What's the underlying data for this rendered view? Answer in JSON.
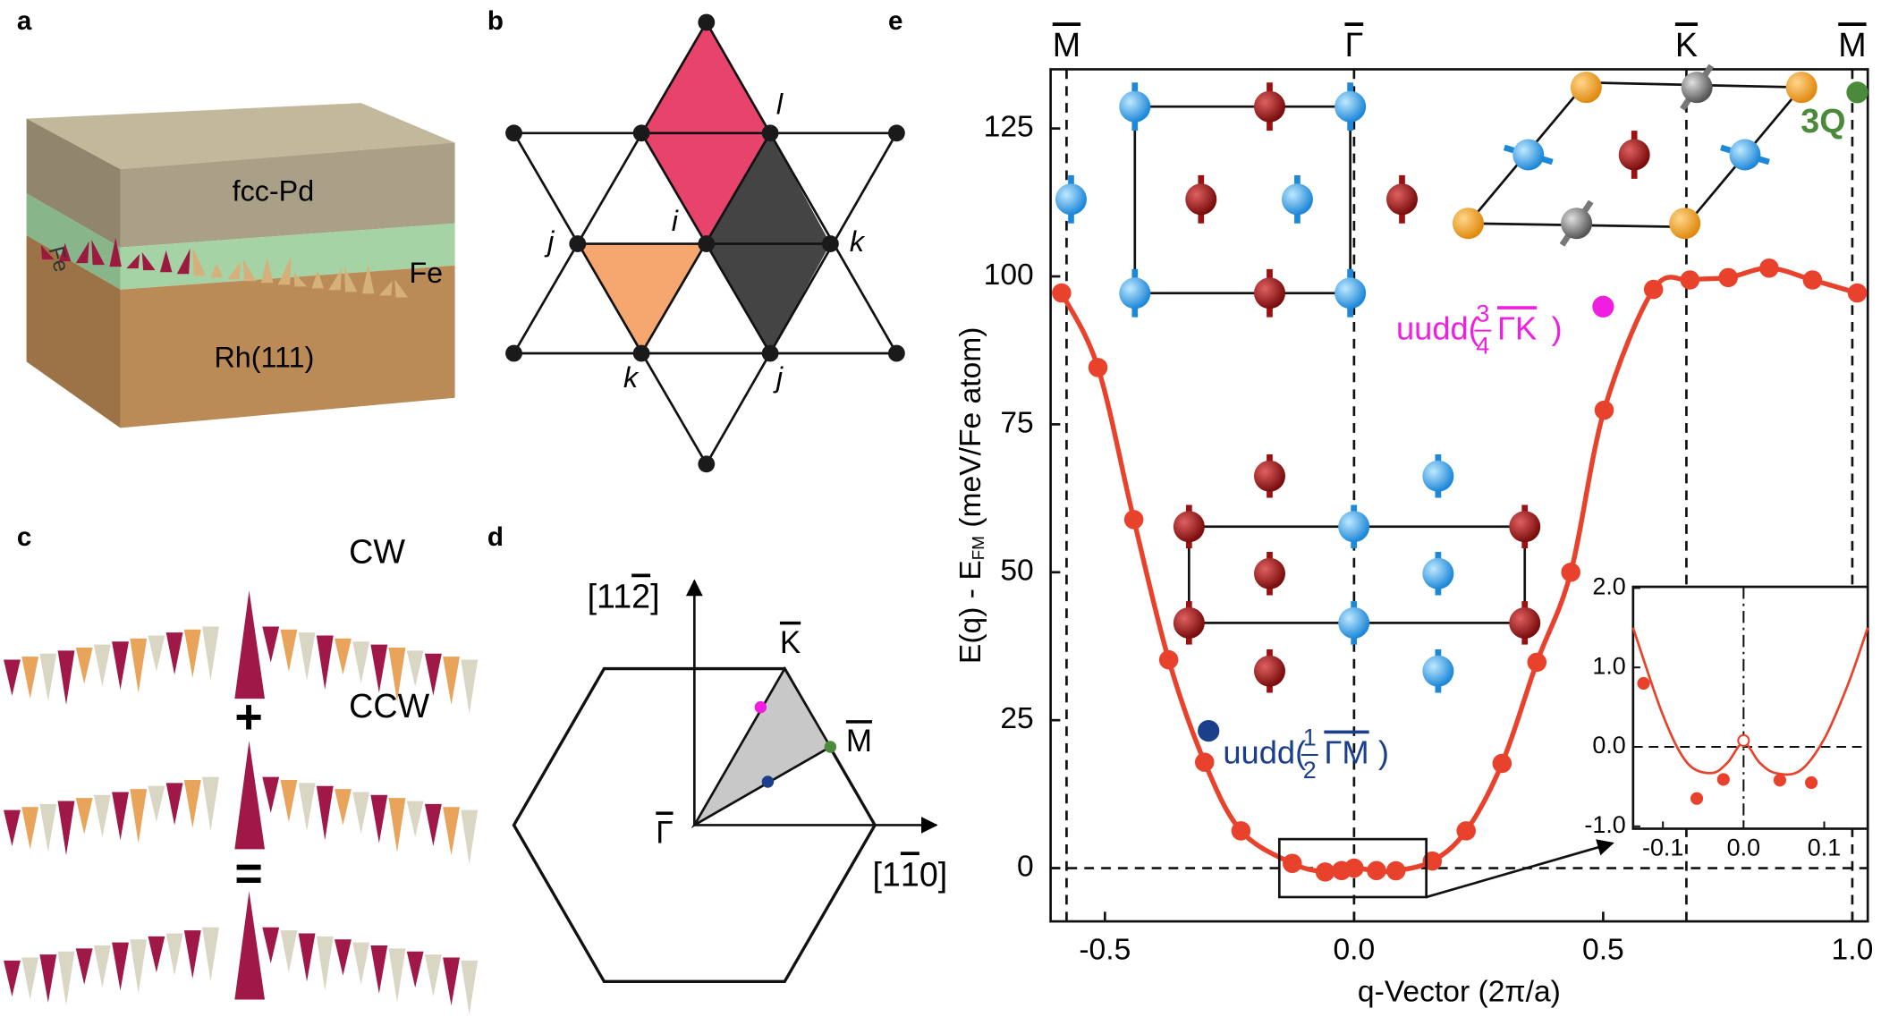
{
  "panel_labels": [
    "a",
    "b",
    "c",
    "d",
    "e"
  ],
  "panel_a": {
    "labels": [
      "fcc-Pd",
      "Fe",
      "Fe",
      "Rh(111)"
    ]
  },
  "panel_b": {
    "labels": [
      "l",
      "i",
      "j",
      "k",
      "k",
      "j"
    ]
  },
  "panel_c": {
    "labels": [
      "CW",
      "+",
      "CCW",
      "="
    ]
  },
  "panel_d": {
    "axis_y": {
      "pre": "[11",
      "bar": "2",
      "post": "]"
    },
    "axis_x": {
      "pre": "[1",
      "bar": "1",
      "post": "0]"
    },
    "points": [
      "K",
      "M",
      "Γ"
    ]
  },
  "chart_data": {
    "type": "line",
    "x_label": "q-Vector (2π/a)",
    "y_label": {
      "main": "E(q) - E",
      "sub": "FM",
      "unit": " (meV/Fe atom)"
    },
    "xlim": [
      -0.609,
      1.031
    ],
    "ylim": [
      -9,
      135
    ],
    "xticks": [
      -0.5,
      {
        "value": 0,
        "label": "0.0"
      },
      0.5,
      {
        "value": 1,
        "label": "1.0"
      }
    ],
    "yticks": [
      0,
      25,
      50,
      75,
      100,
      125
    ],
    "high_symmetry": [
      {
        "label": "M",
        "x": -0.577
      },
      {
        "label": "Γ",
        "x": 0
      },
      {
        "label": "K",
        "x": 0.667
      },
      {
        "label": "M",
        "x": 1.0
      }
    ],
    "series": [
      {
        "color": "#e8412c",
        "x": [
          -0.587,
          -0.514,
          -0.442,
          -0.372,
          -0.3,
          -0.227,
          -0.124,
          -0.058,
          -0.025,
          0,
          0.045,
          0.084,
          0.157,
          0.225,
          0.297,
          0.367,
          0.435,
          0.502,
          0.601,
          0.674,
          0.751,
          0.833,
          0.92,
          1.01
        ],
        "values": [
          97.2,
          84.6,
          58.9,
          35.2,
          17.9,
          6.3,
          0.8,
          -0.65,
          -0.41,
          0,
          -0.42,
          -0.45,
          1.2,
          6.3,
          17.7,
          34.8,
          50,
          77.4,
          97.8,
          99.4,
          99.8,
          101.4,
          99.4,
          97.2
        ]
      }
    ],
    "annotations": [
      {
        "prefix": "uudd(",
        "numerator": "3",
        "denominator": "4",
        "path": "ΓK",
        "suffix": ")",
        "x": 0.5,
        "y": 94.9,
        "color": "#f01ee0"
      },
      {
        "prefix": "uudd(",
        "numerator": "1",
        "denominator": "2",
        "path": "ΓM",
        "suffix": ")",
        "x": -0.292,
        "y": 23.2,
        "color": "#1c3f8c"
      },
      {
        "label": "3Q",
        "x": 1.01,
        "y": 131.1,
        "color": "#4a8a3a"
      }
    ],
    "zoom_box": {
      "x": [
        -0.15,
        0.145
      ],
      "y": [
        -4.9,
        4.9
      ]
    },
    "inset": {
      "xlim": [
        -0.137,
        0.154
      ],
      "ylim": [
        -1.03,
        2.015
      ],
      "xticks": [
        -0.1,
        {
          "value": 0,
          "label": "0.0"
        },
        0.1
      ],
      "yticks": [
        {
          "value": 2,
          "label": "2.0"
        },
        {
          "value": 1,
          "label": "1.0"
        },
        {
          "value": 0,
          "label": "0.0"
        },
        {
          "value": -1,
          "label": "-1.0"
        }
      ],
      "points": {
        "x": [
          -0.124,
          -0.058,
          -0.025,
          0,
          0.045,
          0.084
        ],
        "values": [
          0.8,
          -0.65,
          -0.41,
          0.08,
          -0.42,
          -0.45
        ],
        "open": [
          false,
          false,
          false,
          true,
          false,
          false
        ]
      },
      "fit": {
        "x": [
          -0.137,
          -0.1,
          -0.07,
          -0.04,
          -0.02,
          0,
          0.02,
          0.04,
          0.07,
          0.1,
          0.13,
          0.154
        ],
        "values": [
          1.5,
          0.4,
          -0.2,
          -0.33,
          -0.2,
          0.05,
          -0.2,
          -0.33,
          -0.3,
          0.1,
          0.8,
          1.5
        ]
      },
      "color": "#e8412c"
    }
  }
}
